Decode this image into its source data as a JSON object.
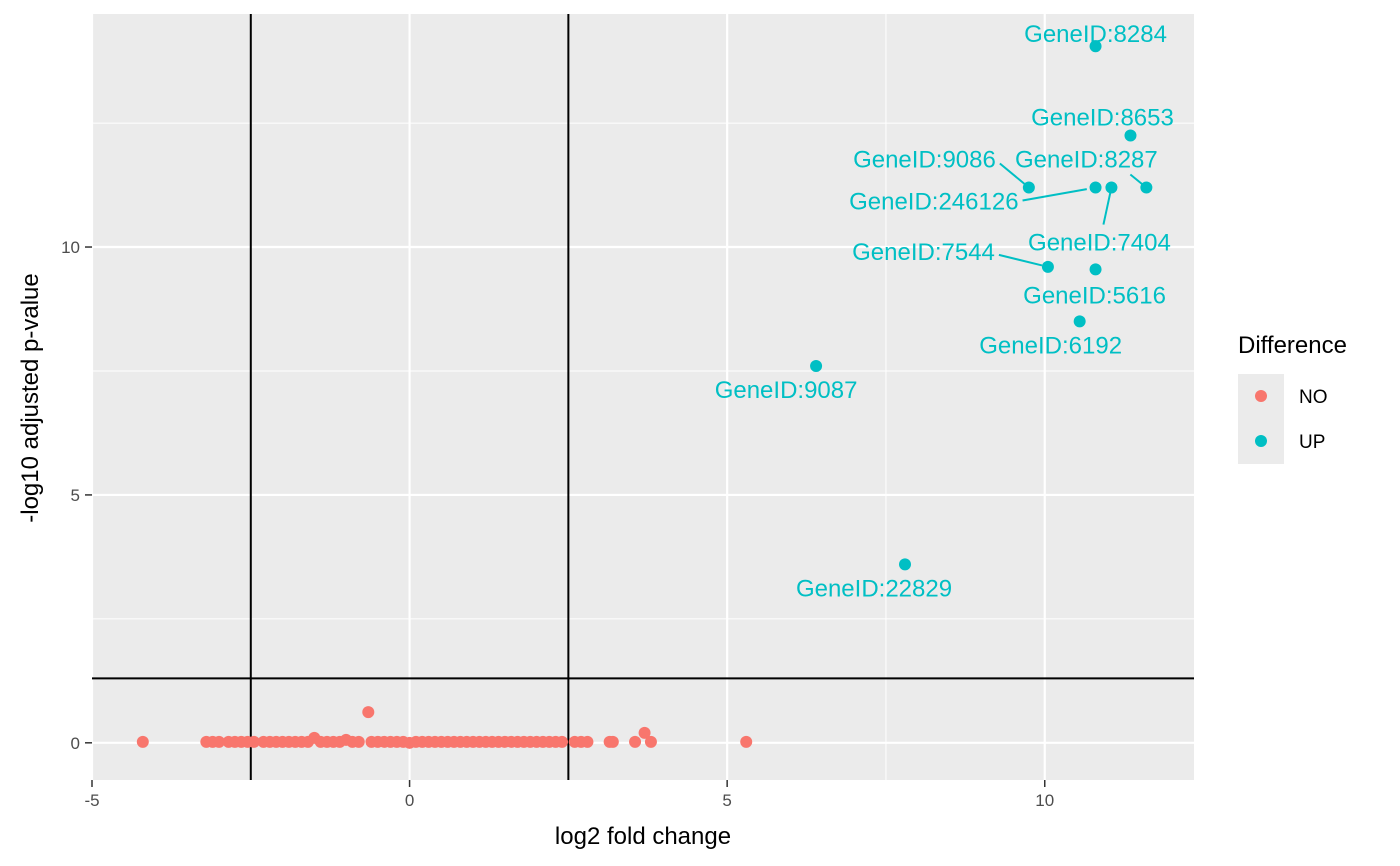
{
  "chart_data": {
    "type": "scatter",
    "xlabel": "log2 fold change",
    "ylabel": "-log10 adjusted p-value",
    "xlim": [
      -5,
      12.35
    ],
    "ylim": [
      -0.75,
      14.7
    ],
    "x_ticks": [
      -5,
      0,
      5,
      10
    ],
    "x_tick_labels": [
      "-5",
      "0",
      "5",
      "10"
    ],
    "y_ticks": [
      0,
      5,
      10
    ],
    "y_tick_labels": [
      "0",
      "5",
      "10"
    ],
    "vlines": [
      -2.5,
      2.5
    ],
    "hline": 1.3,
    "grid": true,
    "legend": {
      "title": "Difference",
      "placement": "right",
      "entries": [
        {
          "label": "NO",
          "color": "#F8766D"
        },
        {
          "label": "UP",
          "color": "#00BFC4"
        }
      ]
    },
    "series": [
      {
        "name": "NO",
        "color": "#F8766D",
        "points": [
          [
            -4.2,
            0.02
          ],
          [
            -3.2,
            0.02
          ],
          [
            -3.1,
            0.02
          ],
          [
            -3.0,
            0.02
          ],
          [
            -2.85,
            0.02
          ],
          [
            -2.75,
            0.02
          ],
          [
            -2.65,
            0.02
          ],
          [
            -2.55,
            0.02
          ],
          [
            -2.45,
            0.02
          ],
          [
            -2.3,
            0.02
          ],
          [
            -2.2,
            0.02
          ],
          [
            -2.1,
            0.02
          ],
          [
            -2.0,
            0.02
          ],
          [
            -1.9,
            0.02
          ],
          [
            -1.8,
            0.02
          ],
          [
            -1.7,
            0.02
          ],
          [
            -1.6,
            0.02
          ],
          [
            -1.5,
            0.1
          ],
          [
            -1.4,
            0.02
          ],
          [
            -1.3,
            0.02
          ],
          [
            -1.2,
            0.02
          ],
          [
            -1.1,
            0.02
          ],
          [
            -1.0,
            0.06
          ],
          [
            -0.9,
            0.02
          ],
          [
            -0.8,
            0.02
          ],
          [
            -0.65,
            0.62
          ],
          [
            -0.6,
            0.02
          ],
          [
            -0.5,
            0.02
          ],
          [
            -0.4,
            0.02
          ],
          [
            -0.3,
            0.02
          ],
          [
            -0.2,
            0.02
          ],
          [
            -0.1,
            0.02
          ],
          [
            0.0,
            0.0
          ],
          [
            0.1,
            0.02
          ],
          [
            0.2,
            0.02
          ],
          [
            0.3,
            0.02
          ],
          [
            0.4,
            0.02
          ],
          [
            0.5,
            0.02
          ],
          [
            0.6,
            0.02
          ],
          [
            0.7,
            0.02
          ],
          [
            0.8,
            0.02
          ],
          [
            0.9,
            0.02
          ],
          [
            1.0,
            0.02
          ],
          [
            1.1,
            0.02
          ],
          [
            1.2,
            0.02
          ],
          [
            1.3,
            0.02
          ],
          [
            1.4,
            0.02
          ],
          [
            1.5,
            0.02
          ],
          [
            1.6,
            0.02
          ],
          [
            1.7,
            0.02
          ],
          [
            1.8,
            0.02
          ],
          [
            1.9,
            0.02
          ],
          [
            2.0,
            0.02
          ],
          [
            2.1,
            0.02
          ],
          [
            2.2,
            0.02
          ],
          [
            2.3,
            0.02
          ],
          [
            2.4,
            0.02
          ],
          [
            2.6,
            0.02
          ],
          [
            2.7,
            0.02
          ],
          [
            2.8,
            0.02
          ],
          [
            3.15,
            0.02
          ],
          [
            3.2,
            0.02
          ],
          [
            3.55,
            0.02
          ],
          [
            3.7,
            0.2
          ],
          [
            3.8,
            0.02
          ],
          [
            5.3,
            0.02
          ]
        ]
      },
      {
        "name": "UP",
        "color": "#00BFC4",
        "points": [
          {
            "x": 10.8,
            "y": 14.05,
            "label": "GeneID:8284"
          },
          {
            "x": 11.35,
            "y": 12.25,
            "label": "GeneID:8653"
          },
          {
            "x": 9.75,
            "y": 11.2,
            "label": "GeneID:9086"
          },
          {
            "x": 11.6,
            "y": 11.2,
            "label": "GeneID:8287"
          },
          {
            "x": 10.8,
            "y": 11.2,
            "label": "GeneID:246126"
          },
          {
            "x": 11.05,
            "y": 11.2,
            "label": "GeneID:7404"
          },
          {
            "x": 10.05,
            "y": 9.6,
            "label": "GeneID:7544"
          },
          {
            "x": 10.8,
            "y": 9.55,
            "label": "GeneID:5616"
          },
          {
            "x": 10.55,
            "y": 8.5,
            "label": "GeneID:6192"
          },
          {
            "x": 6.4,
            "y": 7.6,
            "label": "GeneID:9087"
          },
          {
            "x": 7.8,
            "y": 3.6,
            "label": "GeneID:22829"
          }
        ]
      }
    ]
  }
}
